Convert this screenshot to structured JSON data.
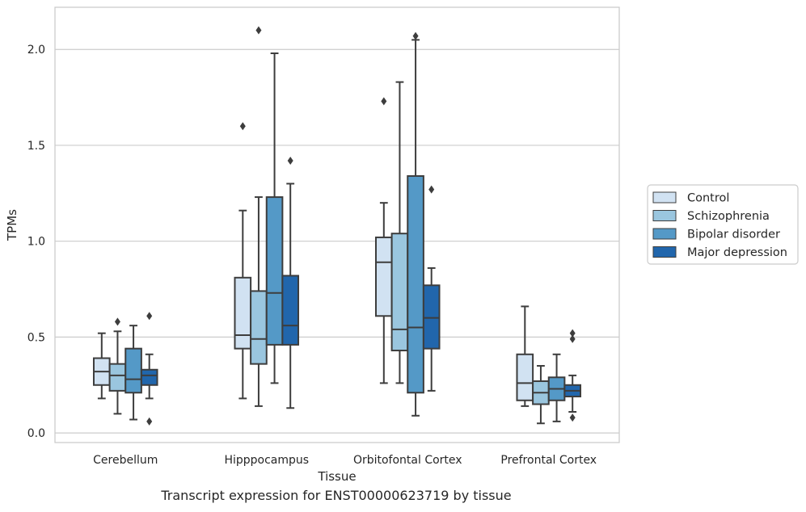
{
  "caption": "Transcript expression for ENST00000623719 by tissue",
  "chart_data": {
    "type": "boxplot",
    "xlabel": "Tissue",
    "ylabel": "TPMs",
    "ylim": [
      -0.05,
      2.22
    ],
    "yticks": [
      0.0,
      0.5,
      1.0,
      1.5,
      2.0
    ],
    "ytick_labels": [
      "0.0",
      "0.5",
      "1.0",
      "1.5",
      "2.0"
    ],
    "grid": "horizontal",
    "legend_position": "right",
    "categories": [
      "Cerebellum",
      "Hipppocampus",
      "Orbitofontal Cortex",
      "Prefrontal Cortex"
    ],
    "series": [
      {
        "name": "Control",
        "color": "#d1e2f2",
        "boxes": [
          {
            "whislo": 0.18,
            "q1": 0.25,
            "med": 0.32,
            "q3": 0.39,
            "whishi": 0.52,
            "fliers": []
          },
          {
            "whislo": 0.18,
            "q1": 0.44,
            "med": 0.51,
            "q3": 0.81,
            "whishi": 1.16,
            "fliers": [
              1.6
            ]
          },
          {
            "whislo": 0.26,
            "q1": 0.61,
            "med": 0.89,
            "q3": 1.02,
            "whishi": 1.2,
            "fliers": [
              1.73
            ]
          },
          {
            "whislo": 0.14,
            "q1": 0.17,
            "med": 0.26,
            "q3": 0.41,
            "whishi": 0.66,
            "fliers": []
          }
        ]
      },
      {
        "name": "Schizophrenia",
        "color": "#9ac6df",
        "boxes": [
          {
            "whislo": 0.1,
            "q1": 0.22,
            "med": 0.3,
            "q3": 0.36,
            "whishi": 0.53,
            "fliers": [
              0.58
            ]
          },
          {
            "whislo": 0.14,
            "q1": 0.36,
            "med": 0.49,
            "q3": 0.74,
            "whishi": 1.23,
            "fliers": [
              2.1
            ]
          },
          {
            "whislo": 0.26,
            "q1": 0.43,
            "med": 0.54,
            "q3": 1.04,
            "whishi": 1.83,
            "fliers": []
          },
          {
            "whislo": 0.05,
            "q1": 0.15,
            "med": 0.21,
            "q3": 0.27,
            "whishi": 0.35,
            "fliers": []
          }
        ]
      },
      {
        "name": "Bipolar disorder",
        "color": "#5499c7",
        "boxes": [
          {
            "whislo": 0.07,
            "q1": 0.21,
            "med": 0.28,
            "q3": 0.44,
            "whishi": 0.56,
            "fliers": []
          },
          {
            "whislo": 0.26,
            "q1": 0.46,
            "med": 0.73,
            "q3": 1.23,
            "whishi": 1.98,
            "fliers": []
          },
          {
            "whislo": 0.09,
            "q1": 0.21,
            "med": 0.55,
            "q3": 1.34,
            "whishi": 2.05,
            "fliers": [
              2.07
            ]
          },
          {
            "whislo": 0.06,
            "q1": 0.17,
            "med": 0.23,
            "q3": 0.29,
            "whishi": 0.41,
            "fliers": []
          }
        ]
      },
      {
        "name": "Major depression",
        "color": "#2166ac",
        "boxes": [
          {
            "whislo": 0.18,
            "q1": 0.25,
            "med": 0.3,
            "q3": 0.33,
            "whishi": 0.41,
            "fliers": [
              0.61,
              0.06
            ]
          },
          {
            "whislo": 0.13,
            "q1": 0.46,
            "med": 0.56,
            "q3": 0.82,
            "whishi": 1.3,
            "fliers": [
              1.42
            ]
          },
          {
            "whislo": 0.22,
            "q1": 0.44,
            "med": 0.6,
            "q3": 0.77,
            "whishi": 0.86,
            "fliers": [
              1.27
            ]
          },
          {
            "whislo": 0.11,
            "q1": 0.19,
            "med": 0.22,
            "q3": 0.25,
            "whishi": 0.3,
            "fliers": [
              0.52,
              0.49,
              0.08
            ]
          }
        ]
      }
    ]
  }
}
